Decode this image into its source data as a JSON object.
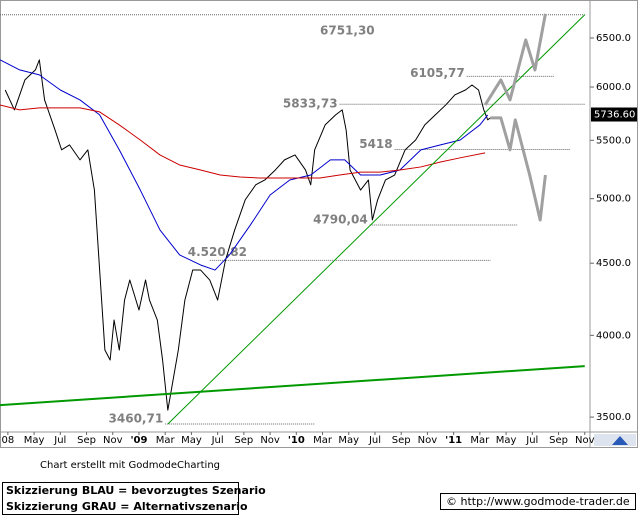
{
  "chart_data": {
    "type": "line",
    "log_scale": true,
    "xlim": [
      -10.6,
      34.4
    ],
    "ylim": [
      3427,
      6860
    ],
    "xticks": [
      {
        "value": -10,
        "label": "08"
      },
      {
        "value": -8,
        "label": "May"
      },
      {
        "value": -6,
        "label": "Jul"
      },
      {
        "value": -4,
        "label": "Sep"
      },
      {
        "value": -2,
        "label": "Nov"
      },
      {
        "value": 0,
        "label": "'09"
      },
      {
        "value": 2,
        "label": "Mar"
      },
      {
        "value": 4,
        "label": "May"
      },
      {
        "value": 6,
        "label": "Jul"
      },
      {
        "value": 8,
        "label": "Sep"
      },
      {
        "value": 10,
        "label": "Nov"
      },
      {
        "value": 12,
        "label": "'10"
      },
      {
        "value": 14,
        "label": "Mar"
      },
      {
        "value": 16,
        "label": "May"
      },
      {
        "value": 18,
        "label": "Jul"
      },
      {
        "value": 20,
        "label": "Sep"
      },
      {
        "value": 22,
        "label": "Nov"
      },
      {
        "value": 24,
        "label": "'11"
      },
      {
        "value": 26,
        "label": "Mar"
      },
      {
        "value": 28,
        "label": "May"
      },
      {
        "value": 30,
        "label": "Jul"
      },
      {
        "value": 32,
        "label": "Sep"
      },
      {
        "value": 34,
        "label": "Nov"
      }
    ],
    "yticks": [
      {
        "value": 3500,
        "label": "3500.0"
      },
      {
        "value": 4000,
        "label": "4000.0"
      },
      {
        "value": 4500,
        "label": "4500.0"
      },
      {
        "value": 5000,
        "label": "5000.0"
      },
      {
        "value": 5500,
        "label": "5500.0"
      },
      {
        "value": 6000,
        "label": "6000.0"
      },
      {
        "value": 6500,
        "label": "6500.0"
      }
    ],
    "last_price": {
      "value": 5736.6,
      "label": "5736.60"
    },
    "lines": [
      {
        "color": "#000000",
        "width": 1,
        "x": [
          -10.2,
          -9.5,
          -8.7,
          -7.9,
          -7.6,
          -7.2,
          -6.4,
          -5.9,
          -5.3,
          -4.5,
          -3.9,
          -3.4,
          -3.0,
          -2.6,
          -2.2,
          -1.9,
          -1.5,
          -1.1,
          -0.7,
          0,
          0.5,
          0.8,
          1.4,
          1.8,
          2.2,
          2.6,
          3.0,
          3.5,
          4.1,
          4.7,
          5.4,
          6.0,
          6.6,
          7.3,
          8.1,
          8.9,
          9.6,
          10.4,
          11.1,
          11.9,
          12.7,
          13.1,
          13.4,
          14.2,
          15.0,
          15.5,
          15.8,
          16.1,
          16.5,
          16.9,
          17.5,
          17.8,
          18.2,
          18.8,
          19.5,
          20.3,
          21.1,
          21.8,
          22.6,
          23.4,
          24.1,
          24.9,
          25.4,
          25.9,
          26.3,
          26.6,
          26.8
        ],
        "values": [
          5971,
          5780,
          6070,
          6170,
          6272,
          5875,
          5593,
          5415,
          5459,
          5327,
          5415,
          5071,
          4450,
          3905,
          3842,
          4101,
          3905,
          4237,
          4378,
          4169,
          4378,
          4237,
          4101,
          3842,
          3540,
          3718,
          3905,
          4237,
          4450,
          4450,
          4378,
          4237,
          4523,
          4751,
          4990,
          5114,
          5155,
          5240,
          5327,
          5370,
          5240,
          5114,
          5415,
          5640,
          5733,
          5780,
          5593,
          5240,
          5155,
          5071,
          5155,
          4829,
          4990,
          5155,
          5197,
          5415,
          5503,
          5640,
          5733,
          5827,
          5924,
          5971,
          6020,
          5971,
          5780,
          5687,
          5705
        ]
      },
      {
        "color": "#0000cc",
        "width": 1,
        "x": [
          -10.6,
          -9.1,
          -7.6,
          -6.0,
          -4.5,
          -3.0,
          -1.5,
          0.1,
          1.6,
          3.1,
          4.7,
          5.8,
          6.9,
          8.5,
          10.0,
          11.5,
          13.1,
          14.6,
          15.7,
          16.9,
          18.4,
          19.9,
          21.5,
          23.0,
          24.5,
          26.0,
          26.6
        ],
        "values": [
          6272,
          6170,
          6120,
          5971,
          5875,
          5733,
          5415,
          5071,
          4751,
          4561,
          4487,
          4450,
          4561,
          4790,
          5030,
          5155,
          5197,
          5327,
          5327,
          5197,
          5197,
          5240,
          5415,
          5459,
          5503,
          5640,
          5733
        ]
      },
      {
        "color": "#cc0000",
        "width": 1,
        "x": [
          -10.6,
          -9.1,
          -7.6,
          -6.0,
          -4.5,
          -3.0,
          -1.5,
          0.1,
          1.6,
          3.1,
          4.7,
          6.2,
          7.7,
          9.2,
          10.8,
          12.3,
          13.8,
          15.3,
          16.9,
          18.4,
          19.9,
          21.5,
          23.0,
          24.5,
          26.4
        ],
        "values": [
          5827,
          5780,
          5799,
          5799,
          5799,
          5761,
          5640,
          5503,
          5370,
          5283,
          5240,
          5197,
          5180,
          5172,
          5172,
          5172,
          5172,
          5197,
          5222,
          5222,
          5240,
          5266,
          5309,
          5345,
          5388
        ]
      },
      {
        "color": "#009900",
        "width": 1,
        "x": [
          2.2,
          34.0
        ],
        "values": [
          3460.71,
          6751.3
        ]
      },
      {
        "color": "#009900",
        "width": 2,
        "x": [
          -10.6,
          34.0
        ],
        "values": [
          3569,
          3804
        ]
      },
      {
        "color": "#a0a0a0",
        "width": 3,
        "x": [
          26.4,
          27.6,
          28.3,
          29.5,
          30.2,
          31.0
        ],
        "values": [
          5827,
          6070,
          5875,
          6480,
          6170,
          6762
        ]
      },
      {
        "color": "#a0a0a0",
        "width": 3,
        "x": [
          26.8,
          27.6,
          28.3,
          28.7,
          29.8,
          30.6,
          31.0
        ],
        "values": [
          5705,
          5705,
          5415,
          5687,
          5197,
          4829,
          5197
        ]
      }
    ],
    "levels": [
      {
        "value": 6751.3,
        "label": "6751,30",
        "from": -10.6,
        "to": 34.0
      },
      {
        "value": 6105.77,
        "label": "6105,77",
        "from": 25.0,
        "to": 31.7
      },
      {
        "value": 5833.73,
        "label": "5833,73",
        "from": 15.3,
        "to": 34.0
      },
      {
        "value": 5418,
        "label": "5418",
        "from": 19.5,
        "to": 32.9
      },
      {
        "value": 4790.04,
        "label": "4790,04",
        "from": 17.6,
        "to": 28.9
      },
      {
        "value": 4520.82,
        "label": "4.520,82",
        "from": 5.4,
        "to": 26.8
      },
      {
        "value": 3460.71,
        "label": "3460,71",
        "from": 2.0,
        "to": 13.4
      }
    ],
    "credit": "Chart erstellt mit GodmodeCharting",
    "notes": [
      "Skizzierung BLAU = bevorzugtes Szenario",
      "Skizzierung GRAU = Alternativszenario"
    ],
    "source": "© http://www.godmode-trader.de"
  }
}
